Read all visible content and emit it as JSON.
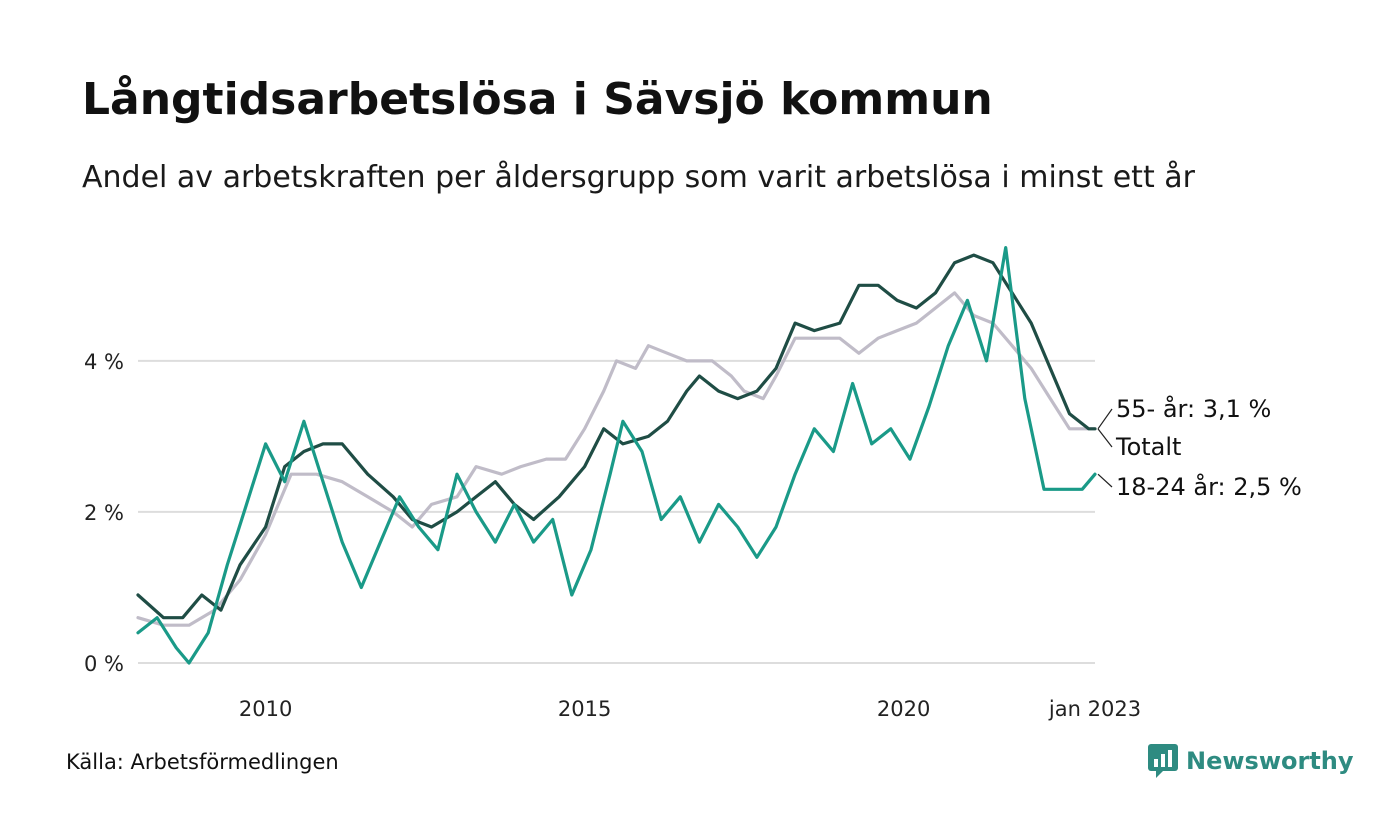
{
  "title": "Långtidsarbetslösa i Sävsjö kommun",
  "subtitle": "Andel av arbetskraften per åldersgrupp som varit arbetslösa i minst ett år",
  "source": "Källa: Arbetsförmedlingen",
  "brand": {
    "name": "Newsworthy",
    "icon": "newsworthy-logo-icon",
    "color": "#2e8b81"
  },
  "chart_data": {
    "type": "line",
    "x_unit": "year (decimal)",
    "xlim": [
      2008.0,
      2023.0
    ],
    "ylim": [
      0,
      5.6
    ],
    "y_ticks": [
      {
        "value": 0,
        "label": "0 %"
      },
      {
        "value": 2,
        "label": "2 %"
      },
      {
        "value": 4,
        "label": "4 %"
      }
    ],
    "x_ticks": [
      {
        "value": 2010.0,
        "label": "2010"
      },
      {
        "value": 2015.0,
        "label": "2015"
      },
      {
        "value": 2020.0,
        "label": "2020"
      },
      {
        "value": 2023.0,
        "label": "jan 2023"
      }
    ],
    "grid": "horizontal",
    "legend": "end labels",
    "series": [
      {
        "name": "Totalt",
        "end_label": "Totalt",
        "color": "#c0bcc8",
        "points": [
          [
            2008.0,
            0.6
          ],
          [
            2008.4,
            0.5
          ],
          [
            2008.8,
            0.5
          ],
          [
            2009.2,
            0.7
          ],
          [
            2009.6,
            1.1
          ],
          [
            2010.0,
            1.7
          ],
          [
            2010.4,
            2.5
          ],
          [
            2010.8,
            2.5
          ],
          [
            2011.2,
            2.4
          ],
          [
            2011.6,
            2.2
          ],
          [
            2012.0,
            2.0
          ],
          [
            2012.3,
            1.8
          ],
          [
            2012.6,
            2.1
          ],
          [
            2013.0,
            2.2
          ],
          [
            2013.3,
            2.6
          ],
          [
            2013.7,
            2.5
          ],
          [
            2014.0,
            2.6
          ],
          [
            2014.4,
            2.7
          ],
          [
            2014.7,
            2.7
          ],
          [
            2015.0,
            3.1
          ],
          [
            2015.3,
            3.6
          ],
          [
            2015.5,
            4.0
          ],
          [
            2015.8,
            3.9
          ],
          [
            2016.0,
            4.2
          ],
          [
            2016.3,
            4.1
          ],
          [
            2016.6,
            4.0
          ],
          [
            2017.0,
            4.0
          ],
          [
            2017.3,
            3.8
          ],
          [
            2017.5,
            3.6
          ],
          [
            2017.8,
            3.5
          ],
          [
            2018.0,
            3.8
          ],
          [
            2018.3,
            4.3
          ],
          [
            2018.7,
            4.3
          ],
          [
            2019.0,
            4.3
          ],
          [
            2019.3,
            4.1
          ],
          [
            2019.6,
            4.3
          ],
          [
            2019.9,
            4.4
          ],
          [
            2020.2,
            4.5
          ],
          [
            2020.5,
            4.7
          ],
          [
            2020.8,
            4.9
          ],
          [
            2021.1,
            4.6
          ],
          [
            2021.4,
            4.5
          ],
          [
            2021.7,
            4.2
          ],
          [
            2022.0,
            3.9
          ],
          [
            2022.3,
            3.5
          ],
          [
            2022.6,
            3.1
          ],
          [
            2022.9,
            3.1
          ],
          [
            2023.0,
            3.1
          ]
        ]
      },
      {
        "name": "55- år",
        "end_label": "55- år: 3,1 %",
        "color": "#1f4d45",
        "points": [
          [
            2008.0,
            0.9
          ],
          [
            2008.4,
            0.6
          ],
          [
            2008.7,
            0.6
          ],
          [
            2009.0,
            0.9
          ],
          [
            2009.3,
            0.7
          ],
          [
            2009.6,
            1.3
          ],
          [
            2010.0,
            1.8
          ],
          [
            2010.3,
            2.6
          ],
          [
            2010.6,
            2.8
          ],
          [
            2010.9,
            2.9
          ],
          [
            2011.2,
            2.9
          ],
          [
            2011.6,
            2.5
          ],
          [
            2012.0,
            2.2
          ],
          [
            2012.3,
            1.9
          ],
          [
            2012.6,
            1.8
          ],
          [
            2013.0,
            2.0
          ],
          [
            2013.3,
            2.2
          ],
          [
            2013.6,
            2.4
          ],
          [
            2013.9,
            2.1
          ],
          [
            2014.2,
            1.9
          ],
          [
            2014.6,
            2.2
          ],
          [
            2015.0,
            2.6
          ],
          [
            2015.3,
            3.1
          ],
          [
            2015.6,
            2.9
          ],
          [
            2016.0,
            3.0
          ],
          [
            2016.3,
            3.2
          ],
          [
            2016.6,
            3.6
          ],
          [
            2016.8,
            3.8
          ],
          [
            2017.1,
            3.6
          ],
          [
            2017.4,
            3.5
          ],
          [
            2017.7,
            3.6
          ],
          [
            2018.0,
            3.9
          ],
          [
            2018.3,
            4.5
          ],
          [
            2018.6,
            4.4
          ],
          [
            2019.0,
            4.5
          ],
          [
            2019.3,
            5.0
          ],
          [
            2019.6,
            5.0
          ],
          [
            2019.9,
            4.8
          ],
          [
            2020.2,
            4.7
          ],
          [
            2020.5,
            4.9
          ],
          [
            2020.8,
            5.3
          ],
          [
            2021.1,
            5.4
          ],
          [
            2021.4,
            5.3
          ],
          [
            2021.7,
            4.9
          ],
          [
            2022.0,
            4.5
          ],
          [
            2022.3,
            3.9
          ],
          [
            2022.6,
            3.3
          ],
          [
            2022.9,
            3.1
          ],
          [
            2023.0,
            3.1
          ]
        ]
      },
      {
        "name": "18-24 år",
        "end_label": "18-24 år: 2,5 %",
        "color": "#1a9a88",
        "points": [
          [
            2008.0,
            0.4
          ],
          [
            2008.3,
            0.6
          ],
          [
            2008.6,
            0.2
          ],
          [
            2008.8,
            0.0
          ],
          [
            2009.1,
            0.4
          ],
          [
            2009.4,
            1.3
          ],
          [
            2009.7,
            2.1
          ],
          [
            2010.0,
            2.9
          ],
          [
            2010.3,
            2.4
          ],
          [
            2010.6,
            3.2
          ],
          [
            2010.9,
            2.4
          ],
          [
            2011.2,
            1.6
          ],
          [
            2011.5,
            1.0
          ],
          [
            2011.8,
            1.6
          ],
          [
            2012.1,
            2.2
          ],
          [
            2012.4,
            1.8
          ],
          [
            2012.7,
            1.5
          ],
          [
            2013.0,
            2.5
          ],
          [
            2013.3,
            2.0
          ],
          [
            2013.6,
            1.6
          ],
          [
            2013.9,
            2.1
          ],
          [
            2014.2,
            1.6
          ],
          [
            2014.5,
            1.9
          ],
          [
            2014.8,
            0.9
          ],
          [
            2015.1,
            1.5
          ],
          [
            2015.4,
            2.5
          ],
          [
            2015.6,
            3.2
          ],
          [
            2015.9,
            2.8
          ],
          [
            2016.2,
            1.9
          ],
          [
            2016.5,
            2.2
          ],
          [
            2016.8,
            1.6
          ],
          [
            2017.1,
            2.1
          ],
          [
            2017.4,
            1.8
          ],
          [
            2017.7,
            1.4
          ],
          [
            2018.0,
            1.8
          ],
          [
            2018.3,
            2.5
          ],
          [
            2018.6,
            3.1
          ],
          [
            2018.9,
            2.8
          ],
          [
            2019.2,
            3.7
          ],
          [
            2019.5,
            2.9
          ],
          [
            2019.8,
            3.1
          ],
          [
            2020.1,
            2.7
          ],
          [
            2020.4,
            3.4
          ],
          [
            2020.7,
            4.2
          ],
          [
            2021.0,
            4.8
          ],
          [
            2021.3,
            4.0
          ],
          [
            2021.6,
            5.5
          ],
          [
            2021.9,
            3.5
          ],
          [
            2022.2,
            2.3
          ],
          [
            2022.5,
            2.3
          ],
          [
            2022.8,
            2.3
          ],
          [
            2023.0,
            2.5
          ]
        ]
      }
    ]
  }
}
